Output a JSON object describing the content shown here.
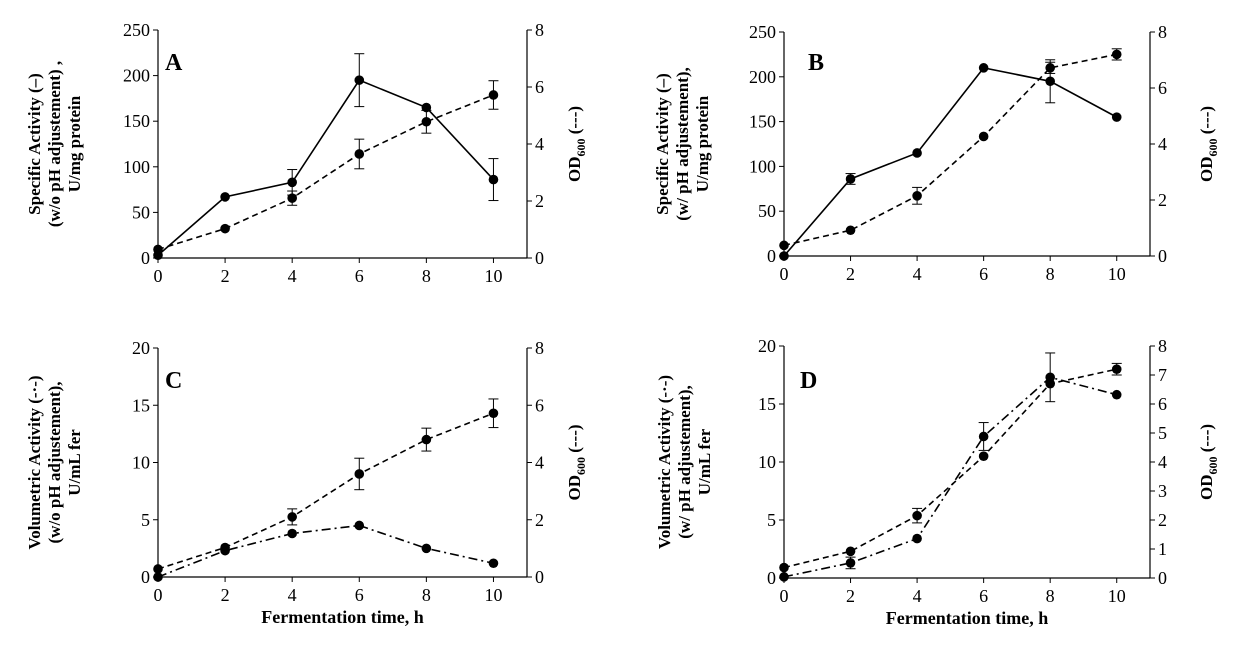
{
  "chart_data": [
    {
      "type": "line",
      "panel": "A",
      "x": [
        0,
        2,
        4,
        6,
        8,
        10
      ],
      "xticks": [
        0,
        2,
        4,
        6,
        8,
        10
      ],
      "xlim": [
        0,
        11
      ],
      "xlabel": "",
      "ylabel_lines": [
        "Specific Activity (–)",
        "(w/o pH adjustement) ,",
        "U/mg protein"
      ],
      "ylim": [
        0,
        250
      ],
      "yticks": [
        0,
        50,
        100,
        150,
        200,
        250
      ],
      "y2label": "OD",
      "y2label_sub": "600",
      "y2label_suffix": " (---)",
      "y2lim": [
        0,
        8
      ],
      "y2ticks": [
        0,
        2,
        4,
        6,
        8
      ],
      "series": [
        {
          "name": "Specific Activity",
          "axis": "left",
          "style": "solid",
          "values": [
            3,
            67,
            83,
            195,
            165,
            86
          ],
          "errors": [
            0,
            0,
            14,
            29,
            0,
            23
          ]
        },
        {
          "name": "OD600",
          "axis": "right",
          "style": "dashed",
          "values": [
            0.3,
            1.03,
            2.1,
            3.65,
            4.78,
            5.72
          ],
          "errors": [
            0,
            0,
            0.25,
            0.52,
            0.4,
            0.5
          ]
        }
      ]
    },
    {
      "type": "line",
      "panel": "B",
      "x": [
        0,
        2,
        4,
        6,
        8,
        10
      ],
      "xticks": [
        0,
        2,
        4,
        6,
        8,
        10
      ],
      "xlim": [
        0,
        11
      ],
      "xlabel": "",
      "ylabel_lines": [
        "Specific Activity (–)",
        "(w/ pH adjustement),",
        "U/mg protein"
      ],
      "ylim": [
        0,
        250
      ],
      "yticks": [
        0,
        50,
        100,
        150,
        200,
        250
      ],
      "y2label": "OD",
      "y2label_sub": "600",
      "y2label_suffix": " (---)",
      "y2lim": [
        0,
        8
      ],
      "y2ticks": [
        0,
        2,
        4,
        6,
        8
      ],
      "series": [
        {
          "name": "Specific Activity",
          "axis": "left",
          "style": "solid",
          "values": [
            0,
            86,
            115,
            210,
            195,
            155
          ],
          "errors": [
            0,
            6,
            0,
            0,
            24,
            0
          ]
        },
        {
          "name": "OD600",
          "axis": "right",
          "style": "dashed",
          "values": [
            0.38,
            0.92,
            2.15,
            4.27,
            6.72,
            7.2
          ],
          "errors": [
            0,
            0,
            0.3,
            0,
            0.2,
            0.2
          ]
        }
      ]
    },
    {
      "type": "line",
      "panel": "C",
      "x": [
        0,
        2,
        4,
        6,
        8,
        10
      ],
      "xticks": [
        0,
        2,
        4,
        6,
        8,
        10
      ],
      "xlim": [
        0,
        11
      ],
      "xlabel": "Fermentation time, h",
      "ylabel_lines": [
        "Volumetric Activity (-·-)",
        "(w/o pH adjustement),",
        "U/mL fer"
      ],
      "ylim": [
        0,
        20
      ],
      "yticks": [
        0,
        5,
        10,
        15,
        20
      ],
      "y2label": "OD",
      "y2label_sub": "600",
      "y2label_suffix": " (---)",
      "y2lim": [
        0,
        8
      ],
      "y2ticks": [
        0,
        2,
        4,
        6,
        8
      ],
      "series": [
        {
          "name": "Volumetric Activity",
          "axis": "left",
          "style": "dashdot",
          "values": [
            0,
            2.3,
            3.8,
            4.5,
            2.5,
            1.2
          ],
          "errors": [
            0,
            0,
            0,
            0,
            0,
            0
          ]
        },
        {
          "name": "OD600",
          "axis": "right",
          "style": "dashed",
          "values": [
            0.28,
            1.03,
            2.1,
            3.6,
            4.8,
            5.72
          ],
          "errors": [
            0,
            0,
            0.28,
            0.55,
            0.4,
            0.5
          ]
        }
      ]
    },
    {
      "type": "line",
      "panel": "D",
      "x": [
        0,
        2,
        4,
        6,
        8,
        10
      ],
      "xticks": [
        0,
        2,
        4,
        6,
        8,
        10
      ],
      "xlim": [
        0,
        11
      ],
      "xlabel": "Fermentation time, h",
      "ylabel_lines": [
        "Volumetric Activity (-·-)",
        "(w/ pH adjustement),",
        "U/mL fer"
      ],
      "ylim": [
        0,
        20
      ],
      "yticks": [
        0,
        5,
        10,
        15,
        20
      ],
      "y2label": "OD",
      "y2label_sub": "600",
      "y2label_suffix": " (---)",
      "y2lim": [
        0,
        8
      ],
      "y2ticks": [
        0,
        1,
        2,
        3,
        4,
        5,
        6,
        7,
        8
      ],
      "series": [
        {
          "name": "Volumetric Activity",
          "axis": "left",
          "style": "dashdot",
          "values": [
            0.1,
            1.3,
            3.4,
            12.2,
            17.3,
            15.8
          ],
          "errors": [
            0,
            0.5,
            0,
            1.2,
            2.1,
            0
          ]
        },
        {
          "name": "OD600",
          "axis": "right",
          "style": "dashed",
          "values": [
            0.36,
            0.92,
            2.15,
            4.2,
            6.7,
            7.2
          ],
          "errors": [
            0,
            0,
            0.25,
            0,
            0,
            0.2
          ]
        }
      ]
    }
  ]
}
